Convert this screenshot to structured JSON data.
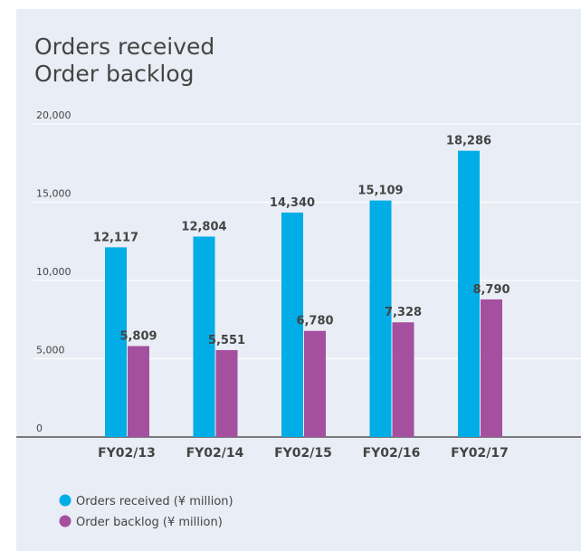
{
  "chart_data": {
    "type": "bar",
    "title": [
      "Orders received",
      "Order backlog"
    ],
    "categories": [
      "FY02/13",
      "FY02/14",
      "FY02/15",
      "FY02/16",
      "FY02/17"
    ],
    "series": [
      {
        "name": "Orders received (¥ million)",
        "color": "#00ade6",
        "values": [
          12117,
          12804,
          14340,
          15109,
          18286
        ],
        "value_labels": [
          "12,117",
          "12,804",
          "14,340",
          "15,109",
          "18,286"
        ]
      },
      {
        "name": "Order backlog (¥ million)",
        "color": "#a4509f",
        "values": [
          5809,
          5551,
          6780,
          7328,
          8790
        ],
        "value_labels": [
          "5,809",
          "5,551",
          "6,780",
          "7,328",
          "8,790"
        ]
      }
    ],
    "ylim": [
      0,
      20000
    ],
    "yticks": [
      0,
      {
        "value": 5000,
        "label": "5,000"
      },
      {
        "value": 10000,
        "label": "10,000"
      },
      {
        "value": 15000,
        "label": "15,000"
      },
      {
        "value": 20000,
        "label": "20,000"
      }
    ],
    "grid": true,
    "legend": "bottom-left"
  }
}
